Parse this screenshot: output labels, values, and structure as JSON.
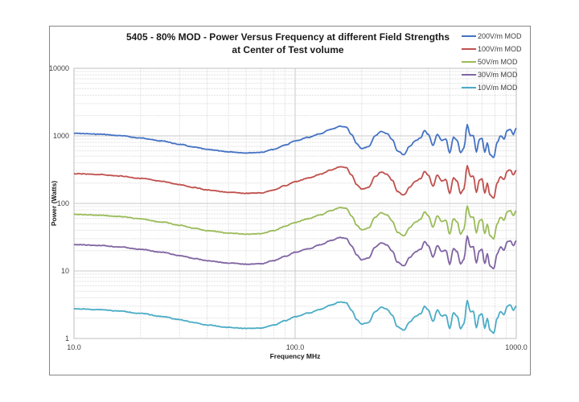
{
  "chart_data": {
    "type": "line",
    "title": "5405 - 80% MOD - Power Versus Frequency at different Field Strengths",
    "subtitle": "at Center of Test volume",
    "xlabel": "Frequency MHz",
    "ylabel": "Power (Watts)",
    "x_scale": "log",
    "y_scale": "log",
    "xlim": [
      10,
      1000
    ],
    "ylim": [
      1,
      10000
    ],
    "x_ticks": [
      "10.0",
      "100.0",
      "1000.0"
    ],
    "x_tick_values": [
      10,
      100,
      1000
    ],
    "y_ticks": [
      "1",
      "10",
      "100",
      "1000",
      "10000"
    ],
    "y_tick_values": [
      1,
      10,
      100,
      1000,
      10000
    ],
    "grid": true,
    "legend_position": "top-right",
    "x": [
      10,
      13,
      16,
      20,
      25,
      30,
      35,
      40,
      50,
      60,
      70,
      80,
      90,
      100,
      115,
      130,
      145,
      160,
      170,
      180,
      190,
      200,
      215,
      230,
      245,
      260,
      275,
      290,
      310,
      330,
      350,
      370,
      385,
      400,
      420,
      440,
      460,
      480,
      500,
      520,
      540,
      560,
      580,
      600,
      620,
      640,
      660,
      680,
      700,
      720,
      740,
      760,
      790,
      820,
      850,
      880,
      910,
      940,
      970,
      1000
    ],
    "series": [
      {
        "name": "200V/m MOD",
        "color": "#4472c4",
        "values": [
          1090,
          1060,
          1010,
          930,
          840,
          750,
          680,
          630,
          580,
          560,
          570,
          630,
          730,
          840,
          950,
          1080,
          1250,
          1390,
          1350,
          1050,
          760,
          650,
          690,
          1000,
          1160,
          1080,
          880,
          600,
          530,
          700,
          850,
          930,
          1200,
          1050,
          720,
          1050,
          860,
          900,
          560,
          950,
          860,
          560,
          660,
          1450,
          1000,
          1010,
          580,
          880,
          930,
          570,
          790,
          530,
          480,
          800,
          1000,
          900,
          1200,
          1250,
          1050,
          1300
        ]
      },
      {
        "name": "100V/m MOD",
        "color": "#c0504d",
        "values": [
          275,
          268,
          255,
          235,
          212,
          190,
          172,
          158,
          146,
          141,
          143,
          158,
          183,
          210,
          238,
          270,
          312,
          348,
          338,
          263,
          190,
          163,
          173,
          250,
          290,
          270,
          220,
          150,
          133,
          175,
          213,
          233,
          300,
          263,
          180,
          263,
          215,
          225,
          140,
          238,
          215,
          140,
          165,
          363,
          250,
          253,
          145,
          220,
          233,
          143,
          198,
          133,
          120,
          200,
          250,
          225,
          300,
          313,
          263,
          310
        ]
      },
      {
        "name": "50V/m MOD",
        "color": "#9bbb59",
        "values": [
          69,
          67,
          64,
          59,
          53,
          47.5,
          43,
          39.5,
          36.5,
          35,
          35.6,
          39.5,
          45.6,
          52.5,
          59.4,
          67.5,
          78,
          87,
          84.4,
          65.6,
          47.5,
          40.6,
          43.1,
          62.5,
          72.5,
          67.5,
          55,
          37.5,
          33.1,
          43.8,
          53.1,
          58.1,
          75,
          65.6,
          45,
          65.6,
          53.8,
          56.3,
          35,
          59.4,
          53.8,
          35,
          41.3,
          90.6,
          62.5,
          63.1,
          36.3,
          55,
          58.1,
          35.6,
          49.4,
          33.1,
          30,
          50,
          62.5,
          56.3,
          75,
          78.1,
          65.6,
          78
        ]
      },
      {
        "name": "30V/m MOD",
        "color": "#8064a2",
        "values": [
          24.5,
          23.9,
          22.7,
          20.9,
          18.9,
          16.9,
          15.3,
          14.2,
          13.1,
          12.6,
          12.8,
          14.2,
          16.4,
          18.9,
          21.4,
          24.3,
          28.1,
          31.3,
          30.4,
          23.6,
          17.1,
          14.6,
          15.5,
          22.5,
          26.1,
          24.3,
          19.8,
          13.5,
          11.9,
          15.8,
          19.1,
          20.9,
          27,
          23.6,
          16.2,
          23.6,
          19.4,
          20.3,
          12.6,
          21.4,
          19.4,
          12.6,
          14.9,
          32.6,
          22.5,
          22.7,
          13.1,
          19.8,
          20.9,
          12.8,
          17.8,
          11.9,
          10.8,
          18,
          22.5,
          20.3,
          27,
          28.1,
          23.6,
          28
        ]
      },
      {
        "name": "10V/m MOD",
        "color": "#4bacc6",
        "values": [
          2.75,
          2.68,
          2.55,
          2.35,
          2.12,
          1.9,
          1.72,
          1.58,
          1.46,
          1.41,
          1.43,
          1.58,
          1.83,
          2.1,
          2.38,
          2.7,
          3.12,
          3.48,
          3.38,
          2.63,
          1.9,
          1.63,
          1.73,
          2.5,
          2.9,
          2.7,
          2.2,
          1.5,
          1.33,
          1.75,
          2.13,
          2.33,
          3,
          2.63,
          1.8,
          2.63,
          2.15,
          2.25,
          1.4,
          2.38,
          2.15,
          1.4,
          1.65,
          3.63,
          2.5,
          2.53,
          1.45,
          2.2,
          2.33,
          1.43,
          1.98,
          1.33,
          1.2,
          2,
          2.5,
          2.25,
          3,
          3.13,
          2.63,
          3.05
        ]
      }
    ]
  }
}
